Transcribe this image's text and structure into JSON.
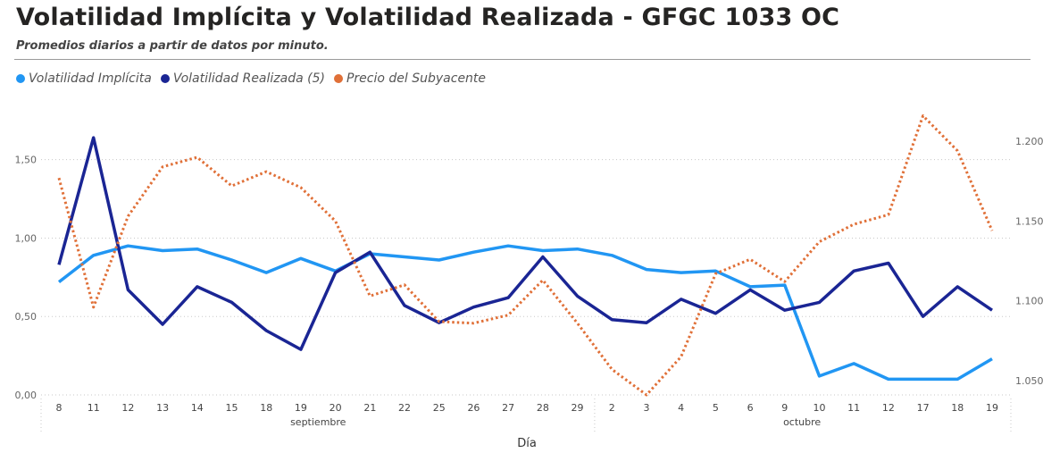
{
  "title": "Volatilidad Implícita y Volatilidad Realizada - GFGC 1033 OC",
  "subtitle": "Promedios diarios a partir de datos por minuto.",
  "legend": [
    {
      "label": "Volatilidad Implícita",
      "color": "#2196f3"
    },
    {
      "label": "Volatilidad Realizada (5)",
      "color": "#1a2594"
    },
    {
      "label": "Precio del Subyacente",
      "color": "#e07038"
    }
  ],
  "chart_data": {
    "type": "line",
    "categories": [
      "8",
      "11",
      "12",
      "13",
      "14",
      "15",
      "18",
      "19",
      "20",
      "21",
      "22",
      "25",
      "26",
      "27",
      "28",
      "29",
      "2",
      "3",
      "4",
      "5",
      "6",
      "9",
      "10",
      "11",
      "12",
      "17",
      "18",
      "19"
    ],
    "month_groups": [
      {
        "label": "septiembre",
        "start": 0,
        "end": 15
      },
      {
        "label": "octubre",
        "start": 16,
        "end": 27
      }
    ],
    "xlabel": "Día",
    "y_left": {
      "ticks": [
        "0,00",
        "0,50",
        "1,00",
        "1,50"
      ],
      "tick_values": [
        0,
        0.5,
        1.0,
        1.5
      ],
      "range": [
        0,
        1.8
      ]
    },
    "y_right": {
      "ticks": [
        "1.050",
        "1.100",
        "1.150",
        "1.200"
      ],
      "tick_values": [
        1050,
        1100,
        1150,
        1200
      ],
      "range": [
        1041,
        1218
      ]
    },
    "grid": true,
    "series": [
      {
        "name": "Volatilidad Implícita",
        "axis": "left",
        "color": "#2196f3",
        "style": "solid",
        "values": [
          0.72,
          0.89,
          0.95,
          0.92,
          0.93,
          0.86,
          0.78,
          0.87,
          0.79,
          0.9,
          0.88,
          0.86,
          0.91,
          0.95,
          0.92,
          0.93,
          0.89,
          0.8,
          0.78,
          0.79,
          0.69,
          0.7,
          0.12,
          0.2,
          0.1,
          0.1,
          0.1,
          0.23
        ]
      },
      {
        "name": "Volatilidad Realizada (5)",
        "axis": "left",
        "color": "#1a2594",
        "style": "solid",
        "values": [
          0.83,
          1.64,
          0.67,
          0.45,
          0.69,
          0.59,
          0.41,
          0.29,
          0.78,
          0.91,
          0.57,
          0.46,
          0.56,
          0.62,
          0.88,
          0.63,
          0.48,
          0.46,
          0.61,
          0.52,
          0.67,
          0.54,
          0.59,
          0.79,
          0.84,
          0.5,
          0.69,
          0.54
        ]
      },
      {
        "name": "Precio del Subyacente",
        "axis": "right",
        "color": "#e07038",
        "style": "dotted",
        "values": [
          1177,
          1096,
          1153,
          1184,
          1190,
          1172,
          1181,
          1171,
          1150,
          1103,
          1110,
          1087,
          1086,
          1091,
          1113,
          1086,
          1057,
          1041,
          1065,
          1117,
          1126,
          1112,
          1137,
          1148,
          1154,
          1216,
          1194,
          1144
        ]
      }
    ]
  }
}
